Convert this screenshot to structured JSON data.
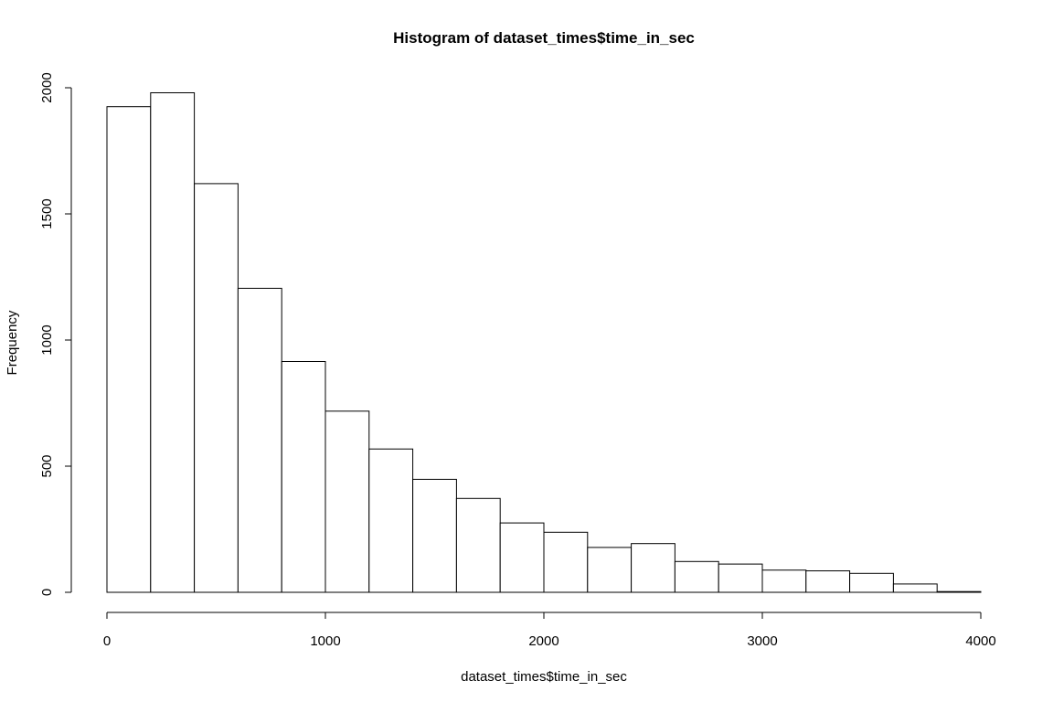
{
  "chart_data": {
    "type": "bar",
    "title": "Histogram of dataset_times$time_in_sec",
    "xlabel": "dataset_times$time_in_sec",
    "ylabel": "Frequency",
    "bin_edges": [
      0,
      200,
      400,
      600,
      800,
      1000,
      1200,
      1400,
      1600,
      1800,
      2000,
      2200,
      2400,
      2600,
      2800,
      3000,
      3200,
      3400,
      3600,
      3800,
      4000
    ],
    "values": [
      1925,
      1980,
      1620,
      1205,
      915,
      718,
      568,
      448,
      372,
      275,
      238,
      178,
      193,
      122,
      112,
      88,
      85,
      75,
      33,
      3
    ],
    "xlim": [
      0,
      4000
    ],
    "ylim": [
      0,
      2000
    ],
    "x_ticks": [
      0,
      1000,
      2000,
      3000,
      4000
    ],
    "y_ticks": [
      0,
      500,
      1000,
      1500,
      2000
    ],
    "grid": false,
    "legend": "none",
    "bar_fill": "#ffffff",
    "bar_stroke": "#000000"
  }
}
